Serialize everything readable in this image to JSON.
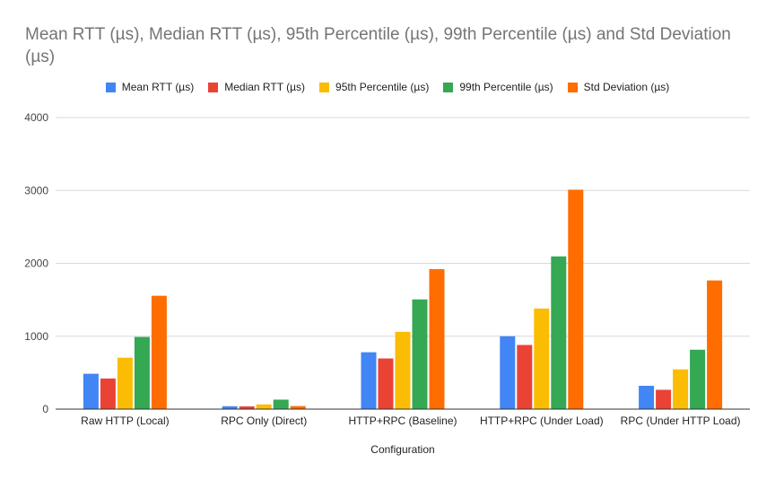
{
  "chart_data": {
    "type": "bar",
    "title": "Mean RTT (µs), Median RTT (µs), 95th Percentile (µs), 99th Percentile (µs) and Std Deviation (µs)",
    "xlabel": "Configuration",
    "ylabel": "",
    "ylim": [
      0,
      4000
    ],
    "yticks": [
      0,
      1000,
      2000,
      3000,
      4000
    ],
    "grid": true,
    "legend_position": "top",
    "categories": [
      "Raw HTTP (Local)",
      "RPC Only (Direct)",
      "HTTP+RPC (Baseline)",
      "HTTP+RPC (Under Load)",
      "RPC (Under HTTP Load)"
    ],
    "series": [
      {
        "name": "Mean RTT (µs)",
        "color": "#4285f4",
        "values": [
          485,
          40,
          780,
          1000,
          320
        ]
      },
      {
        "name": "Median RTT (µs)",
        "color": "#ea4335",
        "values": [
          420,
          38,
          695,
          880,
          265
        ]
      },
      {
        "name": "95th Percentile (µs)",
        "color": "#fbbc04",
        "values": [
          705,
          65,
          1060,
          1380,
          545
        ]
      },
      {
        "name": "99th Percentile (µs)",
        "color": "#34a853",
        "values": [
          990,
          130,
          1505,
          2095,
          815
        ]
      },
      {
        "name": "Std Deviation (µs)",
        "color": "#ff6d01",
        "values": [
          1555,
          42,
          1920,
          3010,
          1765
        ]
      }
    ]
  }
}
